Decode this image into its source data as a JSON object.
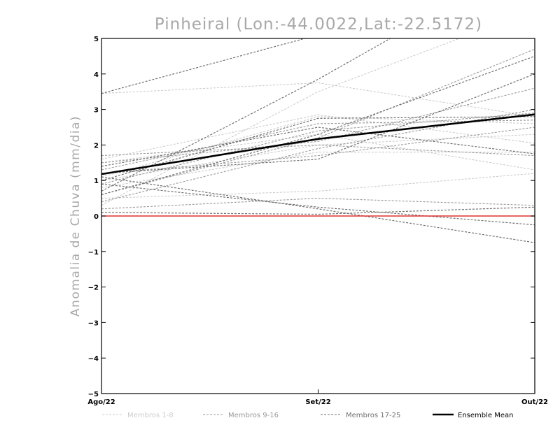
{
  "chart_data": {
    "type": "line",
    "title": "Pinheiral (Lon:-44.0022,Lat:-22.5172)",
    "xlabel": "",
    "ylabel": "Anomalia de Chuva (mm/dia)",
    "categories": [
      "Ago/22",
      "Set/22",
      "Out/22"
    ],
    "ylim": [
      -5,
      5
    ],
    "yticks": [
      -5,
      -4,
      -3,
      -2,
      -1,
      0,
      1,
      2,
      3,
      4,
      5
    ],
    "grid": false,
    "legend_position": "bottom",
    "zero_line_color": "#e03030",
    "series": [
      {
        "name": "Membros 1-8",
        "group": "1-8",
        "values": [
          1.1,
          2.8,
          2.6
        ]
      },
      {
        "name": "Membros 1-8",
        "group": "1-8",
        "values": [
          0.5,
          0.7,
          1.2
        ]
      },
      {
        "name": "Membros 1-8",
        "group": "1-8",
        "values": [
          1.5,
          2.3,
          1.3
        ]
      },
      {
        "name": "Membros 1-8",
        "group": "1-8",
        "values": [
          0.8,
          1.8,
          1.8
        ]
      },
      {
        "name": "Membros 1-8",
        "group": "1-8",
        "values": [
          0.3,
          3.5,
          5.8
        ]
      },
      {
        "name": "Membros 1-8",
        "group": "1-8",
        "values": [
          3.45,
          3.75,
          2.8
        ]
      },
      {
        "name": "Membros 1-8",
        "group": "1-8",
        "values": [
          1.6,
          2.85,
          2.05
        ]
      },
      {
        "name": "Membros 1-8",
        "group": "1-8",
        "values": [
          1.0,
          2.0,
          2.3
        ]
      },
      {
        "name": "Membros 9-16",
        "group": "9-16",
        "values": [
          0.6,
          2.2,
          4.7
        ]
      },
      {
        "name": "Membros 9-16",
        "group": "9-16",
        "values": [
          1.2,
          1.7,
          2.5
        ]
      },
      {
        "name": "Membros 9-16",
        "group": "9-16",
        "values": [
          0.2,
          0.5,
          0.3
        ]
      },
      {
        "name": "Membros 9-16",
        "group": "9-16",
        "values": [
          1.5,
          2.1,
          3.6
        ]
      },
      {
        "name": "Membros 9-16",
        "group": "9-16",
        "values": [
          0.9,
          2.4,
          2.9
        ]
      },
      {
        "name": "Membros 9-16",
        "group": "9-16",
        "values": [
          1.7,
          2.0,
          1.7
        ]
      },
      {
        "name": "Membros 9-16",
        "group": "9-16",
        "values": [
          0.4,
          1.9,
          3.0
        ]
      },
      {
        "name": "Membros 9-16",
        "group": "9-16",
        "values": [
          1.3,
          2.6,
          2.7
        ]
      },
      {
        "name": "Membros 17-25",
        "group": "17-25",
        "values": [
          3.45,
          5.1,
          7.0
        ]
      },
      {
        "name": "Membros 17-25",
        "group": "17-25",
        "values": [
          0.7,
          3.85,
          7.3
        ]
      },
      {
        "name": "Membros 17-25",
        "group": "17-25",
        "values": [
          1.1,
          0.2,
          -0.75
        ]
      },
      {
        "name": "Membros 17-25",
        "group": "17-25",
        "values": [
          0.9,
          0.25,
          -0.25
        ]
      },
      {
        "name": "Membros 17-25",
        "group": "17-25",
        "values": [
          0.1,
          0.05,
          0.25
        ]
      },
      {
        "name": "Membros 17-25",
        "group": "17-25",
        "values": [
          1.0,
          2.75,
          2.8
        ]
      },
      {
        "name": "Membros 17-25",
        "group": "17-25",
        "values": [
          0.6,
          2.3,
          4.5
        ]
      },
      {
        "name": "Membros 17-25",
        "group": "17-25",
        "values": [
          1.2,
          1.6,
          4.0
        ]
      },
      {
        "name": "Membros 17-25",
        "group": "17-25",
        "values": [
          1.4,
          2.5,
          1.75
        ]
      },
      {
        "name": "Ensemble Mean",
        "group": "mean",
        "values": [
          1.18,
          2.17,
          2.86
        ]
      }
    ],
    "legend": [
      {
        "label": "Membros 1-8",
        "color": "#cccccc"
      },
      {
        "label": "Membros 9-16",
        "color": "#999999"
      },
      {
        "label": "Membros 17-25",
        "color": "#707070"
      },
      {
        "label": "Ensemble Mean",
        "color": "#000000"
      }
    ],
    "colors": {
      "g1-8": "#cccccc",
      "g9-16": "#999999",
      "g17-25": "#707070",
      "mean": "#000000"
    }
  }
}
